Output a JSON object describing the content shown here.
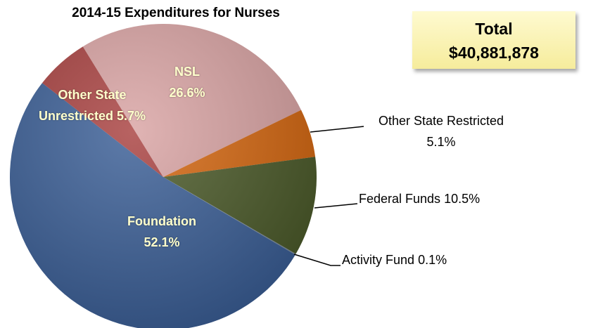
{
  "chart_data": {
    "type": "pie",
    "title": "2014-15 Expenditures for Nurses",
    "total_label": "Total",
    "total_value": "$40,881,878",
    "categories": [
      "NSL",
      "Other State Restricted",
      "Federal Funds",
      "Activity Fund",
      "Foundation",
      "Other State Unrestricted"
    ],
    "values": [
      26.6,
      5.1,
      10.5,
      0.1,
      52.1,
      5.7
    ],
    "value_labels": [
      "26.6%",
      "5.1%",
      "10.5%",
      "0.1%",
      "52.1%",
      "5.7%"
    ],
    "colors": [
      "#d9a3a3",
      "#d4660f",
      "#4b5a29",
      "#7a8a9a",
      "#3a5e96",
      "#a8403f"
    ]
  }
}
